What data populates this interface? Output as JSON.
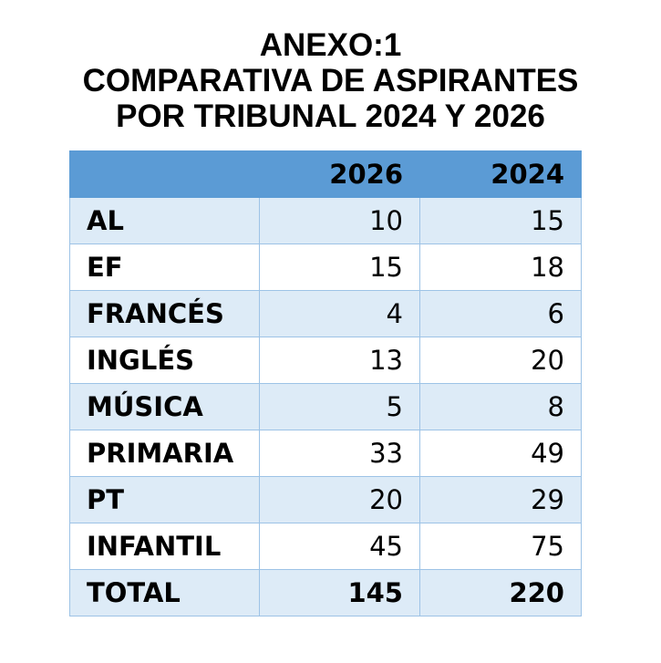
{
  "title": {
    "line1": "ANEXO:1",
    "line2": "COMPARATIVA DE ASPIRANTES",
    "line3": "POR TRIBUNAL 2024 Y 2026"
  },
  "table": {
    "headers": [
      "",
      "2026",
      "2024"
    ],
    "rows": [
      {
        "label": "AL",
        "v2026": "10",
        "v2024": "15"
      },
      {
        "label": "EF",
        "v2026": "15",
        "v2024": "18"
      },
      {
        "label": "FRANCÉS",
        "v2026": "4",
        "v2024": "6"
      },
      {
        "label": "INGLÉS",
        "v2026": "13",
        "v2024": "20"
      },
      {
        "label": "MÚSICA",
        "v2026": "5",
        "v2024": "8"
      },
      {
        "label": "PRIMARIA",
        "v2026": "33",
        "v2024": "49"
      },
      {
        "label": "PT",
        "v2026": "20",
        "v2024": "29"
      },
      {
        "label": "INFANTIL",
        "v2026": "45",
        "v2024": "75"
      }
    ],
    "total": {
      "label": "TOTAL",
      "v2026": "145",
      "v2024": "220"
    }
  },
  "colors": {
    "header_bg": "#5b9bd5",
    "band_bg": "#ddebf7",
    "border": "#9dc3e6"
  }
}
